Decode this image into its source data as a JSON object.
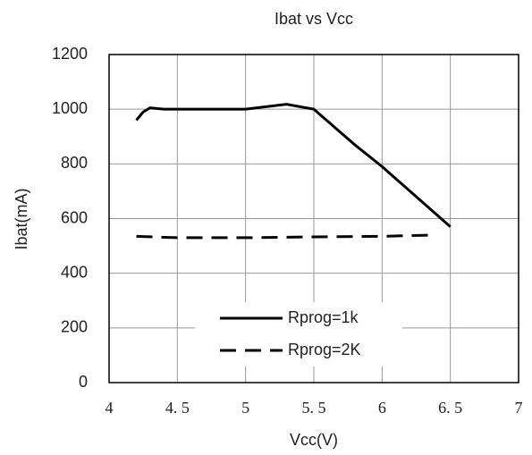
{
  "chart_data": {
    "type": "line",
    "title": "Ibat vs Vcc",
    "x_label": "Vcc(V)",
    "y_label": "Ibat(mA)",
    "xlim": [
      4,
      7
    ],
    "xticks": [
      4,
      {
        "value": 4.5,
        "label": "4. 5"
      },
      5,
      {
        "value": 5.5,
        "label": "5. 5"
      },
      6,
      {
        "value": 6.5,
        "label": "6. 5"
      },
      7
    ],
    "ylim": [
      0,
      1200
    ],
    "yticks": [
      0,
      200,
      400,
      600,
      800,
      1000,
      1200
    ],
    "grid": true,
    "legend": "bottom",
    "series": [
      {
        "name": "Rprog=1k",
        "color": "#000000",
        "line_style": "solid",
        "x": [
          4.2,
          4.25,
          4.3,
          4.4,
          5.0,
          5.3,
          5.5,
          5.8,
          6.0,
          6.5
        ],
        "values": [
          960,
          990,
          1005,
          1000,
          1000,
          1018,
          1000,
          870,
          790,
          570
        ]
      },
      {
        "name": "Rprog=2K",
        "color": "#000000",
        "line_style": "dashed",
        "x": [
          4.2,
          4.5,
          5.0,
          5.5,
          6.0,
          6.4
        ],
        "values": [
          535,
          530,
          530,
          533,
          535,
          540
        ]
      }
    ]
  }
}
